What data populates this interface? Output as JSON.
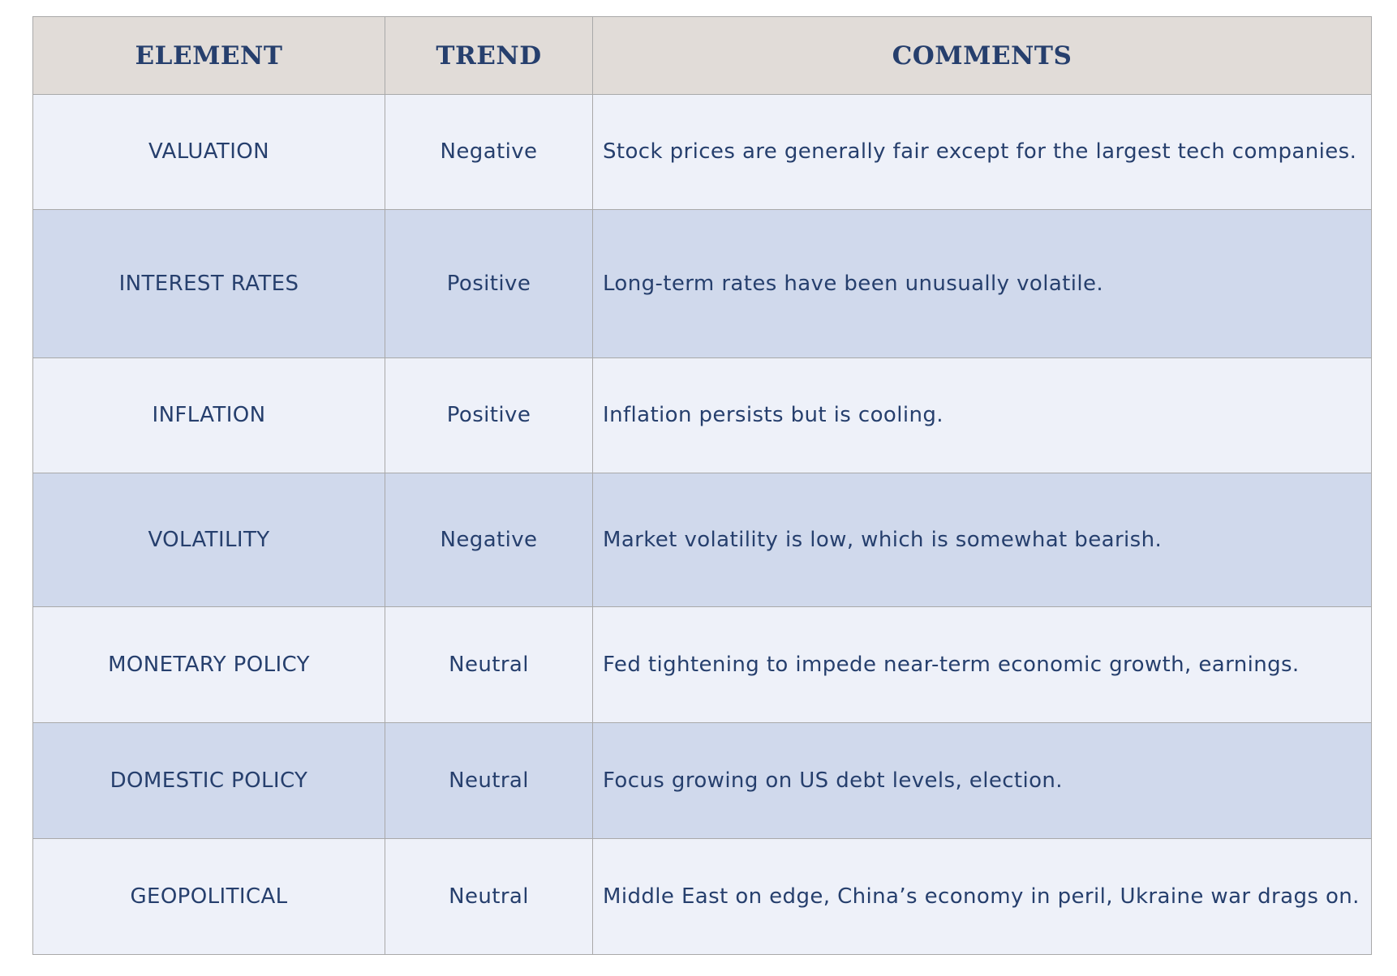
{
  "table": {
    "headers": {
      "element": "ELEMENT",
      "trend": "TREND",
      "comments": "COMMENTS"
    },
    "rows": [
      {
        "element": "VALUATION",
        "trend": "Negative",
        "comment": "Stock prices are generally fair except for the largest tech companies."
      },
      {
        "element": "INTEREST RATES",
        "trend": "Positive",
        "comment": "Long-term rates have been unusually volatile."
      },
      {
        "element": "INFLATION",
        "trend": "Positive",
        "comment": "Inflation persists but is cooling."
      },
      {
        "element": "VOLATILITY",
        "trend": "Negative",
        "comment": "Market volatility is low, which is somewhat bearish."
      },
      {
        "element": "MONETARY POLICY",
        "trend": "Neutral",
        "comment": "Fed tightening to impede near-term economic growth, earnings."
      },
      {
        "element": "DOMESTIC POLICY",
        "trend": "Neutral",
        "comment": "Focus growing on US debt levels, election."
      },
      {
        "element": "GEOPOLITICAL",
        "trend": "Neutral",
        "comment": "Middle East on edge, China’s economy in peril, Ukraine war drags on."
      }
    ]
  },
  "colors": {
    "header_bg": "#e1dcd8",
    "row_light": "#eef1f9",
    "row_dark": "#d0d9ec",
    "text": "#263f6d"
  }
}
